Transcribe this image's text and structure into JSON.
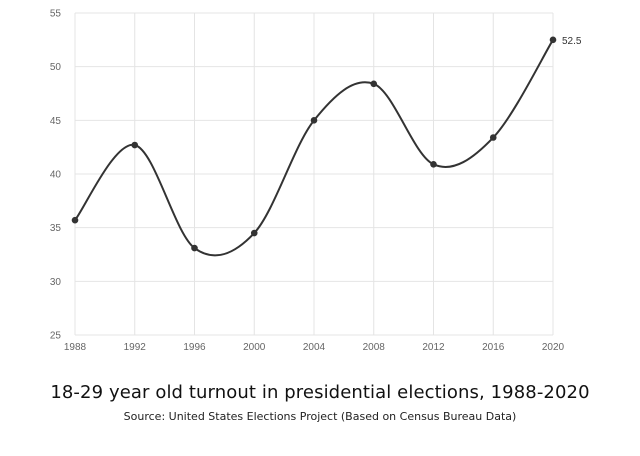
{
  "chart_data": {
    "type": "line",
    "title": "18-29 year old turnout in presidential elections, 1988-2020",
    "subtitle": "Source: United States Elections Project (Based on Census Bureau Data)",
    "x": [
      "1988",
      "1992",
      "1996",
      "2000",
      "2004",
      "2008",
      "2012",
      "2016",
      "2020"
    ],
    "series": [
      {
        "values": [
          35.7,
          42.7,
          33.1,
          34.5,
          45.0,
          48.4,
          40.9,
          43.4,
          52.5
        ]
      }
    ],
    "ylim": [
      25,
      55
    ],
    "yticks": [
      25,
      30,
      35,
      40,
      45,
      50,
      55
    ],
    "data_labels": [
      {
        "x": "2020",
        "text": "52.5"
      }
    ],
    "grid": true,
    "colors": {
      "line": "#333333",
      "grid": "#e4e4e4",
      "text": "#666666"
    }
  }
}
